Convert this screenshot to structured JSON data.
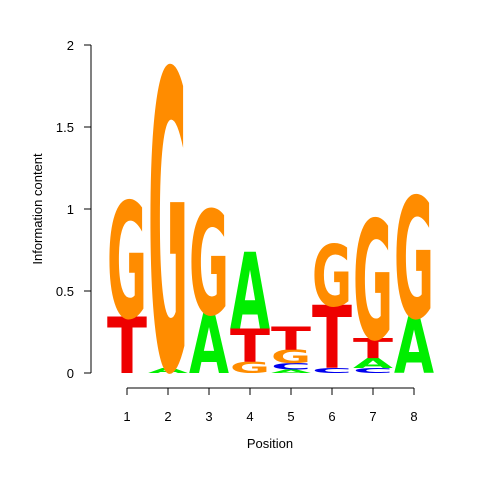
{
  "chart_data": {
    "type": "sequence-logo",
    "xlabel": "Position",
    "ylabel": "Information content",
    "x": [
      "1",
      "2",
      "3",
      "4",
      "5",
      "6",
      "7",
      "8"
    ],
    "yticks": [
      "0",
      "0.5",
      "1",
      "1.5",
      "2"
    ],
    "ylim": [
      0,
      2
    ],
    "letter_colors": {
      "A": "#00ee00",
      "C": "#0000ee",
      "G": "#ff8c00",
      "T": "#ee0000"
    },
    "positions": [
      {
        "pos": 1,
        "stack": [
          {
            "letter": "T",
            "height": 0.34
          },
          {
            "letter": "G",
            "height": 0.7
          }
        ]
      },
      {
        "pos": 2,
        "stack": [
          {
            "letter": "A",
            "height": 0.03
          },
          {
            "letter": "G",
            "height": 1.8
          }
        ]
      },
      {
        "pos": 3,
        "stack": [
          {
            "letter": "A",
            "height": 0.36
          },
          {
            "letter": "G",
            "height": 0.63
          }
        ]
      },
      {
        "pos": 4,
        "stack": [
          {
            "letter": "G",
            "height": 0.07
          },
          {
            "letter": "T",
            "height": 0.2
          },
          {
            "letter": "A",
            "height": 0.46
          }
        ]
      },
      {
        "pos": 5,
        "stack": [
          {
            "letter": "A",
            "height": 0.02
          },
          {
            "letter": "C",
            "height": 0.04
          },
          {
            "letter": "G",
            "height": 0.08
          },
          {
            "letter": "T",
            "height": 0.14
          }
        ]
      },
      {
        "pos": 6,
        "stack": [
          {
            "letter": "C",
            "height": 0.03
          },
          {
            "letter": "T",
            "height": 0.38
          },
          {
            "letter": "G",
            "height": 0.37
          }
        ]
      },
      {
        "pos": 7,
        "stack": [
          {
            "letter": "C",
            "height": 0.03
          },
          {
            "letter": "A",
            "height": 0.06
          },
          {
            "letter": "T",
            "height": 0.12
          },
          {
            "letter": "G",
            "height": 0.72
          }
        ]
      },
      {
        "pos": 8,
        "stack": [
          {
            "letter": "A",
            "height": 0.34
          },
          {
            "letter": "G",
            "height": 0.73
          }
        ]
      }
    ]
  }
}
